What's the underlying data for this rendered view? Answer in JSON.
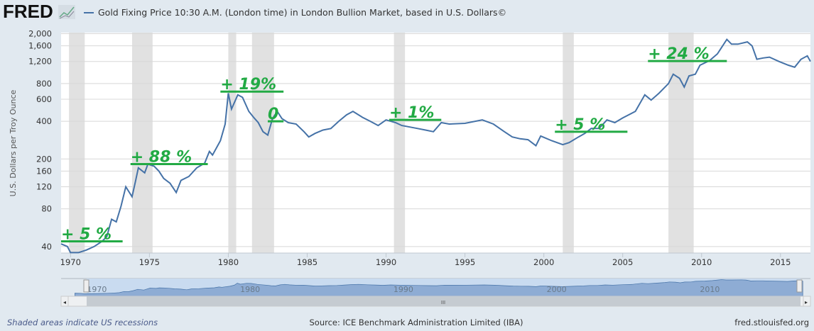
{
  "header": {
    "logo": "FRED",
    "legend_label": "Gold Fixing Price 10:30 A.M. (London time) in London Bullion Market, based in U.S. Dollars©"
  },
  "footer": {
    "recessions_note": "Shaded areas indicate US recessions",
    "source": "Source: ICE Benchmark Administration Limited (IBA)",
    "site": "fred.stlouisfed.org"
  },
  "navigator": {
    "ticks": [
      "1970",
      "1980",
      "1990",
      "2000",
      "2010"
    ],
    "handle_label": "III"
  },
  "colors": {
    "series": "#4572a7",
    "annotation": "#22aa44",
    "recession": "#e1e1e1"
  },
  "chart_data": {
    "type": "line",
    "title": "Gold Fixing Price 10:30 A.M. (London time) in London Bullion Market, based in U.S. Dollars",
    "xlabel": "",
    "ylabel": "U.S. Dollars per Troy Ounce",
    "yscale": "log",
    "ylim": [
      35.5,
      2040
    ],
    "xlim": [
      1969.4,
      2016.9
    ],
    "grid": true,
    "y_ticks": [
      {
        "v": 2000,
        "label": "2,000"
      },
      {
        "v": 1600,
        "label": "1,600"
      },
      {
        "v": 1200,
        "label": "1,200"
      },
      {
        "v": 800,
        "label": "800"
      },
      {
        "v": 600,
        "label": "600"
      },
      {
        "v": 400,
        "label": "400"
      },
      {
        "v": 200,
        "label": "200"
      },
      {
        "v": 160,
        "label": "160"
      },
      {
        "v": 120,
        "label": "120"
      },
      {
        "v": 80,
        "label": "80"
      },
      {
        "v": 40,
        "label": "40"
      }
    ],
    "x_ticks": [
      {
        "v": 1970,
        "label": "1970"
      },
      {
        "v": 1975,
        "label": "1975"
      },
      {
        "v": 1980,
        "label": "1980"
      },
      {
        "v": 1985,
        "label": "1985"
      },
      {
        "v": 1990,
        "label": "1990"
      },
      {
        "v": 1995,
        "label": "1995"
      },
      {
        "v": 2000,
        "label": "2000"
      },
      {
        "v": 2005,
        "label": "2005"
      },
      {
        "v": 2010,
        "label": "2010"
      },
      {
        "v": 2015,
        "label": "2015"
      }
    ],
    "recessions": [
      [
        1969.9,
        1970.9
      ],
      [
        1973.9,
        1975.2
      ],
      [
        1980.0,
        1980.5
      ],
      [
        1981.5,
        1982.9
      ],
      [
        1990.5,
        1991.2
      ],
      [
        2001.2,
        2001.9
      ],
      [
        2007.9,
        2009.5
      ]
    ],
    "series": [
      {
        "name": "Gold Fixing Price",
        "points": [
          [
            1969.4,
            42
          ],
          [
            1969.8,
            40
          ],
          [
            1970.0,
            35.8
          ],
          [
            1970.5,
            35.8
          ],
          [
            1971.0,
            37.5
          ],
          [
            1971.5,
            40
          ],
          [
            1972.0,
            44
          ],
          [
            1972.3,
            48
          ],
          [
            1972.6,
            66
          ],
          [
            1972.9,
            63
          ],
          [
            1973.2,
            84
          ],
          [
            1973.5,
            120
          ],
          [
            1973.9,
            100
          ],
          [
            1974.1,
            130
          ],
          [
            1974.3,
            170
          ],
          [
            1974.7,
            155
          ],
          [
            1974.9,
            182
          ],
          [
            1975.3,
            175
          ],
          [
            1975.6,
            160
          ],
          [
            1975.9,
            140
          ],
          [
            1976.3,
            128
          ],
          [
            1976.7,
            108
          ],
          [
            1977.0,
            135
          ],
          [
            1977.5,
            145
          ],
          [
            1978.0,
            170
          ],
          [
            1978.5,
            185
          ],
          [
            1978.8,
            230
          ],
          [
            1979.0,
            215
          ],
          [
            1979.5,
            280
          ],
          [
            1979.8,
            380
          ],
          [
            1980.0,
            670
          ],
          [
            1980.2,
            500
          ],
          [
            1980.6,
            650
          ],
          [
            1980.9,
            620
          ],
          [
            1981.3,
            480
          ],
          [
            1981.6,
            430
          ],
          [
            1981.9,
            390
          ],
          [
            1982.2,
            330
          ],
          [
            1982.5,
            310
          ],
          [
            1982.8,
            420
          ],
          [
            1983.1,
            480
          ],
          [
            1983.4,
            420
          ],
          [
            1983.8,
            390
          ],
          [
            1984.3,
            380
          ],
          [
            1984.8,
            330
          ],
          [
            1985.1,
            300
          ],
          [
            1985.5,
            320
          ],
          [
            1986.0,
            340
          ],
          [
            1986.5,
            350
          ],
          [
            1987.0,
            400
          ],
          [
            1987.5,
            450
          ],
          [
            1987.9,
            480
          ],
          [
            1988.5,
            430
          ],
          [
            1989.0,
            400
          ],
          [
            1989.5,
            370
          ],
          [
            1990.0,
            410
          ],
          [
            1990.6,
            390
          ],
          [
            1991.0,
            370
          ],
          [
            1991.5,
            360
          ],
          [
            1992.0,
            350
          ],
          [
            1992.5,
            340
          ],
          [
            1993.0,
            330
          ],
          [
            1993.5,
            390
          ],
          [
            1994.0,
            380
          ],
          [
            1995.0,
            385
          ],
          [
            1996.1,
            410
          ],
          [
            1996.8,
            380
          ],
          [
            1997.5,
            330
          ],
          [
            1998.0,
            300
          ],
          [
            1998.5,
            290
          ],
          [
            1999.0,
            285
          ],
          [
            1999.5,
            255
          ],
          [
            1999.8,
            305
          ],
          [
            2000.5,
            280
          ],
          [
            2001.2,
            260
          ],
          [
            2001.6,
            270
          ],
          [
            2002.2,
            300
          ],
          [
            2002.6,
            320
          ],
          [
            2003.0,
            350
          ],
          [
            2003.5,
            350
          ],
          [
            2004.0,
            410
          ],
          [
            2004.5,
            390
          ],
          [
            2005.0,
            425
          ],
          [
            2005.8,
            480
          ],
          [
            2006.4,
            650
          ],
          [
            2006.8,
            590
          ],
          [
            2007.3,
            670
          ],
          [
            2007.9,
            800
          ],
          [
            2008.2,
            950
          ],
          [
            2008.6,
            880
          ],
          [
            2008.9,
            750
          ],
          [
            2009.2,
            920
          ],
          [
            2009.6,
            950
          ],
          [
            2009.9,
            1120
          ],
          [
            2010.5,
            1220
          ],
          [
            2011.0,
            1380
          ],
          [
            2011.6,
            1800
          ],
          [
            2011.9,
            1650
          ],
          [
            2012.3,
            1650
          ],
          [
            2012.9,
            1720
          ],
          [
            2013.2,
            1600
          ],
          [
            2013.5,
            1250
          ],
          [
            2013.9,
            1280
          ],
          [
            2014.3,
            1300
          ],
          [
            2014.9,
            1200
          ],
          [
            2015.5,
            1120
          ],
          [
            2015.9,
            1080
          ],
          [
            2016.3,
            1250
          ],
          [
            2016.7,
            1330
          ],
          [
            2016.9,
            1200
          ]
        ]
      }
    ],
    "annotations": [
      {
        "text": "+ 5 %",
        "x0": 1969.4,
        "x1": 1973.3,
        "y": 44
      },
      {
        "text": "+ 88 %",
        "x0": 1973.8,
        "x1": 1978.7,
        "y": 182
      },
      {
        "text": "+ 19%",
        "x0": 1979.5,
        "x1": 1983.5,
        "y": 690
      },
      {
        "text": "0",
        "x0": 1982.5,
        "x1": 1983.5,
        "y": 400
      },
      {
        "text": "+ 1%",
        "x0": 1990.2,
        "x1": 1993.5,
        "y": 410
      },
      {
        "text": "+ 5 %",
        "x0": 2000.7,
        "x1": 2005.3,
        "y": 330
      },
      {
        "text": "+ 24 %",
        "x0": 2006.6,
        "x1": 2011.6,
        "y": 1210
      }
    ]
  }
}
